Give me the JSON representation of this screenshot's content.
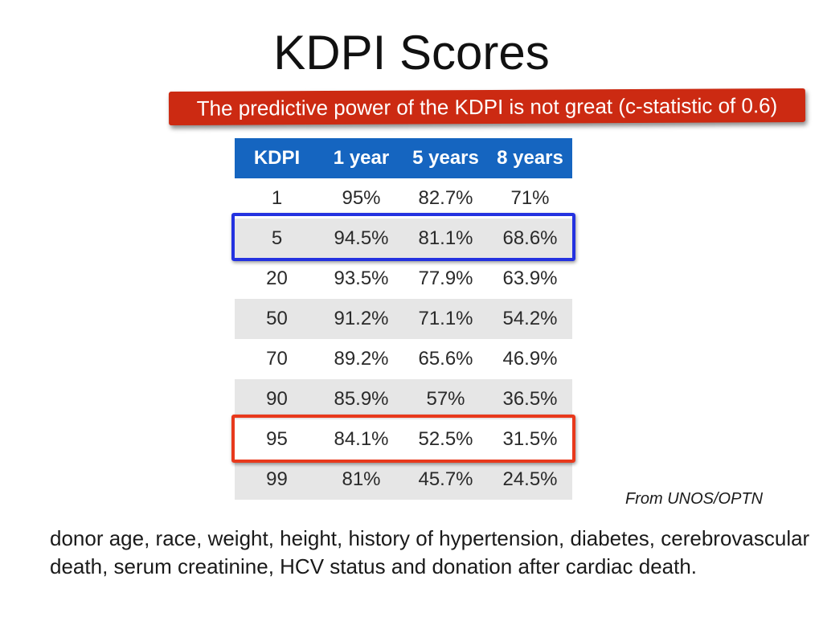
{
  "title": "KDPI Scores",
  "callout": "The predictive power of the KDPI is not great (c-statistic of 0.6)",
  "table": {
    "headers": [
      "KDPI",
      "1 year",
      "5 years",
      "8 years"
    ],
    "rows": [
      [
        "1",
        "95%",
        "82.7%",
        "71%"
      ],
      [
        "5",
        "94.5%",
        "81.1%",
        "68.6%"
      ],
      [
        "20",
        "93.5%",
        "77.9%",
        "63.9%"
      ],
      [
        "50",
        "91.2%",
        "71.1%",
        "54.2%"
      ],
      [
        "70",
        "89.2%",
        "65.6%",
        "46.9%"
      ],
      [
        "90",
        "85.9%",
        "57%",
        "36.5%"
      ],
      [
        "95",
        "84.1%",
        "52.5%",
        "31.5%"
      ],
      [
        "99",
        "81%",
        "45.7%",
        "24.5%"
      ]
    ]
  },
  "highlights": {
    "blue_row": "5",
    "red_row": "95",
    "blue_color": "#2432e0",
    "red_color": "#e8391c"
  },
  "source": "From UNOS/OPTN",
  "footer": "donor age, race, weight, height, history of hypertension, diabetes, cerebrovascular death, serum creatinine, HCV status and donation after cardiac death.",
  "colors": {
    "header_bg": "#1565c0",
    "callout_bg": "#cc2a12",
    "stripe_bg": "#e6e6e6"
  }
}
